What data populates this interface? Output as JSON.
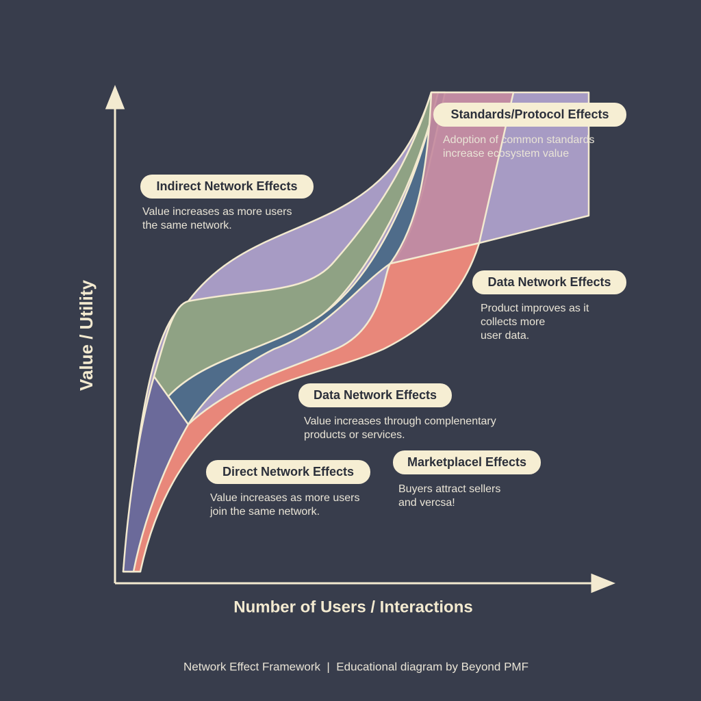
{
  "axes": {
    "y_label": "Value / Utility",
    "x_label": "Number of Users / Interactions"
  },
  "labels": [
    {
      "title": "Standards/Protocol Effects",
      "description": [
        "Adoption of common standards",
        "increase ecosystem value"
      ]
    },
    {
      "title": "Indirect Network Effects",
      "description": [
        "Value increases as more users",
        "the same network."
      ]
    },
    {
      "title": "Data Network Effects",
      "description": [
        "Product improves as it",
        "collects more",
        "user data."
      ]
    },
    {
      "title": "Data Network Effects",
      "description": [
        "Value increases through complenentary",
        "products or services."
      ]
    },
    {
      "title": "Direct Network Effects",
      "description": [
        "Value increases as more users",
        "join the same network."
      ]
    },
    {
      "title": "Marketplacel Effects",
      "description": [
        "Buyers attract sellers",
        "and vercsa!"
      ]
    }
  ],
  "footer": "Network Effect Framework  |  Educational diagram by Beyond PMF"
}
